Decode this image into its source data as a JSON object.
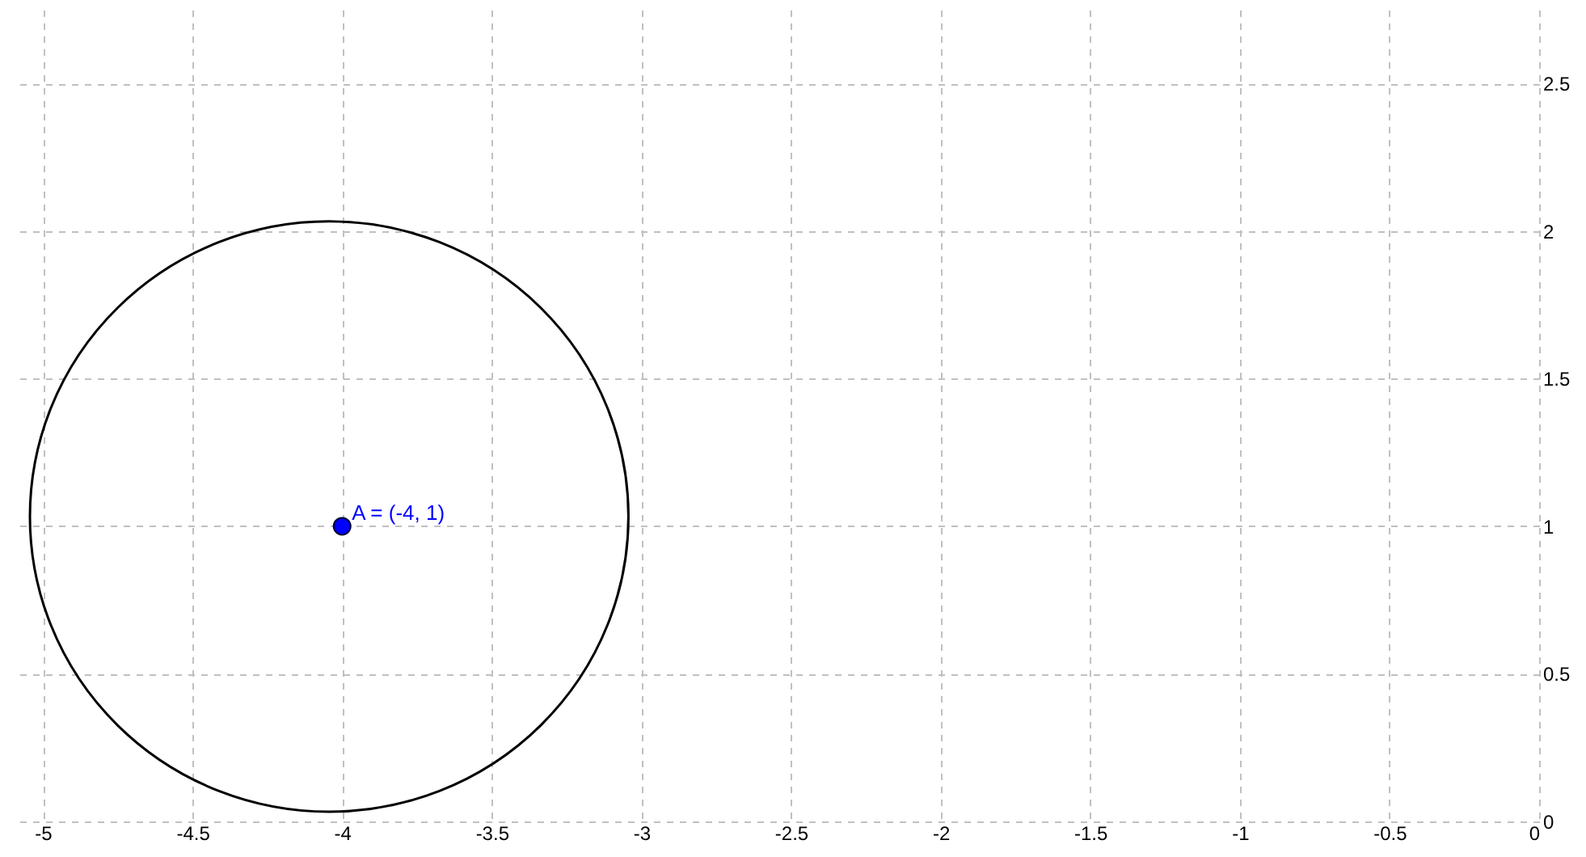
{
  "chart_data": {
    "type": "scatter",
    "xlim": [
      -5.1,
      0
    ],
    "ylim": [
      0,
      2.75
    ],
    "xticks": [
      -5,
      -4.5,
      -4,
      -3.5,
      -3,
      -2.5,
      -2,
      -1.5,
      -1,
      -0.5,
      0
    ],
    "yticks": [
      0,
      0.5,
      1,
      1.5,
      2,
      2.5
    ],
    "grid": true,
    "series": [
      {
        "type": "scatter",
        "color": "#0000ff",
        "marker": "circle",
        "x": [
          -4
        ],
        "values": [
          1
        ]
      }
    ],
    "annotations": [
      {
        "text": "A = (-4, 1)",
        "x": -4,
        "y": 1
      }
    ]
  }
}
